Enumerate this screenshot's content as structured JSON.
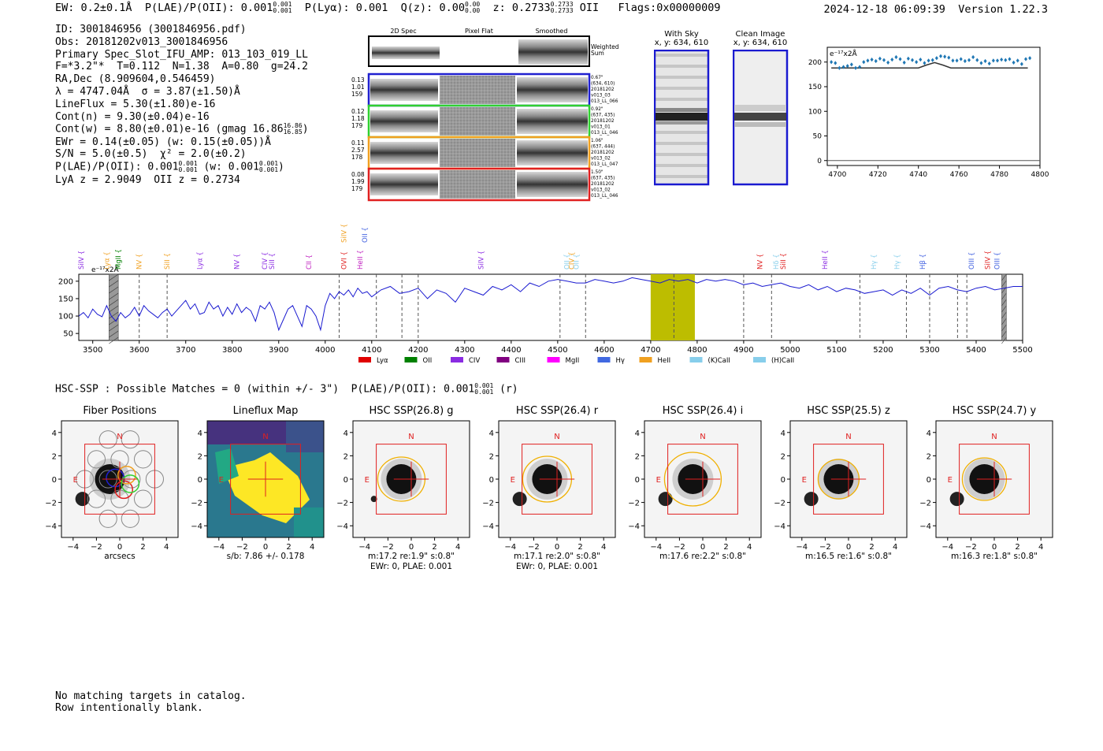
{
  "header": {
    "ew": "EW: 0.2±0.1Å",
    "plae": "P(LAE)/P(OII): 0.001",
    "plae_hi": "0.001",
    "plae_lo": "0.001",
    "plya": "P(Lyα): 0.001",
    "qz": "Q(z): 0.00",
    "qz_hi": "0.00",
    "qz_lo": "0.00",
    "z": "z: 0.2733",
    "z_hi": "0.2733",
    "z_lo": "0.2733",
    "z_type": "OII",
    "flags": "Flags:0x00000009",
    "datetime": "2024-12-18 06:09:39",
    "version": "Version 1.22.3"
  },
  "info": {
    "id": "ID: 3001846956 (3001846956.pdf)",
    "obs": "Obs: 20181202v013_3001846956",
    "primary": "Primary Spec_Slot_IFU_AMP: 013_103_019_LL",
    "params": "F=*3.2\"*  T=0.112  N=1.38  A=0.80  g=24.2",
    "radec": "RA,Dec (8.909604,0.546459)",
    "lambda": "λ = 4747.04Å  σ = 3.87(±1.50)Å",
    "lineflux": "LineFlux = 5.30(±1.80)e-16",
    "contn": "Cont(n) = 9.30(±0.04)e-16",
    "contw": "Cont(w) = 8.80(±0.01)e-16 (gmag 16.86",
    "gmag_hi": "16.86",
    "gmag_lo": "16.85",
    "ewr": "EWr = 0.14(±0.05) (w: 0.15(±0.05))Å",
    "sn": "S/N = 5.0(±0.5)  χ² = 2.0(±0.2)",
    "plae": "P(LAE)/P(OII): 0.001",
    "plae_w": "(w: 0.001",
    "plae_frac_hi": "0.001",
    "plae_frac_lo": "0.001",
    "lyaz": "LyA z = 2.9049  OII z = 0.2734"
  },
  "cutouts": {
    "headers": [
      "2D Spec",
      "Pixel Flat",
      "Smoothed"
    ],
    "weighted": "Weighted\nSum",
    "rows": [
      {
        "left": [
          "0.13",
          "1.01",
          "159"
        ],
        "right": [
          "0.67\"",
          "(634, 610)",
          "20181202",
          "v013_03",
          "013_LL_066"
        ],
        "color": "#2020d0"
      },
      {
        "left": [
          "0.12",
          "1.18",
          "179"
        ],
        "right": [
          "0.92\"",
          "(637, 435)",
          "20181202",
          "v013_01",
          "013_LL_046"
        ],
        "color": "#30d030"
      },
      {
        "left": [
          "0.11",
          "2.57",
          "178"
        ],
        "right": [
          "1.06\"",
          "(637, 444)",
          "20181202",
          "v013_02",
          "013_LL_047"
        ],
        "color": "#f0a020"
      },
      {
        "left": [
          "0.08",
          "1.99",
          "179"
        ],
        "right": [
          "1.50\"",
          "(637, 435)",
          "20181202",
          "v013_02",
          "013_LL_046"
        ],
        "color": "#e02020"
      }
    ],
    "with_sky": [
      "With Sky",
      "x, y: 634, 610"
    ],
    "clean": [
      "Clean Image",
      "x, y: 634, 610"
    ]
  },
  "hsc": {
    "title": "HSC-SSP : Possible Matches = 0 (within +/- 3\")  P(LAE)/P(OII): 0.001",
    "title_hi": "0.001",
    "title_lo": "0.001",
    "title_band": "(r)"
  },
  "footer": {
    "line1": "No matching targets in catalog.",
    "line2": "Row intentionally blank."
  },
  "chart_data": [
    {
      "type": "scatter",
      "name": "line-zoom",
      "title": "",
      "ylabel_note": "e⁻¹⁷x2Å",
      "x_ticks": [
        4700,
        4720,
        4740,
        4760,
        4780,
        4800
      ],
      "y_ticks": [
        0,
        50,
        100,
        150,
        200
      ],
      "xlim": [
        4695,
        4800
      ],
      "ylim": [
        -10,
        230
      ],
      "points_x": [
        4697,
        4699,
        4701,
        4703,
        4705,
        4707,
        4709,
        4711,
        4713,
        4715,
        4717,
        4719,
        4721,
        4723,
        4725,
        4727,
        4729,
        4731,
        4733,
        4735,
        4737,
        4739,
        4741,
        4743,
        4745,
        4747,
        4749,
        4751,
        4753,
        4755,
        4757,
        4759,
        4761,
        4763,
        4765,
        4767,
        4769,
        4771,
        4773,
        4775,
        4777,
        4779,
        4781,
        4783,
        4785,
        4787,
        4789,
        4791,
        4793,
        4795
      ],
      "points_y": [
        200,
        198,
        188,
        190,
        192,
        195,
        188,
        190,
        200,
        203,
        205,
        202,
        207,
        204,
        199,
        205,
        210,
        206,
        199,
        207,
        204,
        200,
        205,
        198,
        203,
        204,
        208,
        212,
        211,
        209,
        203,
        203,
        206,
        202,
        204,
        210,
        204,
        198,
        202,
        197,
        203,
        203,
        205,
        204,
        206,
        199,
        203,
        196,
        206,
        208
      ],
      "model_x": [
        4697,
        4740,
        4744,
        4748,
        4752,
        4756,
        4794
      ],
      "model_y": [
        188,
        188,
        194,
        199,
        194,
        188,
        188
      ]
    },
    {
      "type": "line",
      "name": "full-spectrum",
      "x_ticks": [
        3500,
        3600,
        3700,
        3800,
        3900,
        4000,
        4100,
        4200,
        4300,
        4400,
        4500,
        4600,
        4700,
        4800,
        4900,
        5000,
        5100,
        5200,
        5300,
        5400,
        5500
      ],
      "y_ticks": [
        50,
        100,
        150,
        200
      ],
      "xlim": [
        3470,
        5500
      ],
      "ylim": [
        30,
        220
      ],
      "ylabel_note": "e⁻¹⁷x2Å",
      "x": [
        3470,
        3480,
        3490,
        3500,
        3510,
        3520,
        3530,
        3540,
        3550,
        3560,
        3570,
        3580,
        3590,
        3600,
        3610,
        3620,
        3630,
        3640,
        3650,
        3660,
        3670,
        3680,
        3690,
        3700,
        3710,
        3720,
        3730,
        3740,
        3750,
        3760,
        3770,
        3780,
        3790,
        3800,
        3810,
        3820,
        3830,
        3840,
        3850,
        3860,
        3870,
        3880,
        3890,
        3900,
        3910,
        3920,
        3930,
        3940,
        3950,
        3960,
        3970,
        3980,
        3990,
        4000,
        4010,
        4020,
        4030,
        4040,
        4050,
        4060,
        4070,
        4080,
        4090,
        4100,
        4120,
        4140,
        4160,
        4180,
        4200,
        4220,
        4240,
        4260,
        4280,
        4300,
        4320,
        4340,
        4360,
        4380,
        4400,
        4420,
        4440,
        4460,
        4480,
        4500,
        4520,
        4540,
        4560,
        4580,
        4600,
        4620,
        4640,
        4660,
        4680,
        4700,
        4720,
        4740,
        4760,
        4780,
        4800,
        4820,
        4840,
        4860,
        4880,
        4900,
        4920,
        4940,
        4960,
        4980,
        5000,
        5020,
        5040,
        5060,
        5080,
        5100,
        5120,
        5140,
        5160,
        5180,
        5200,
        5220,
        5240,
        5260,
        5280,
        5300,
        5320,
        5340,
        5360,
        5380,
        5400,
        5420,
        5440,
        5460,
        5480,
        5500
      ],
      "y": [
        100,
        110,
        95,
        120,
        105,
        98,
        130,
        100,
        85,
        110,
        95,
        105,
        125,
        100,
        130,
        115,
        105,
        95,
        110,
        120,
        100,
        115,
        130,
        145,
        120,
        135,
        105,
        110,
        140,
        120,
        130,
        100,
        125,
        105,
        135,
        110,
        125,
        115,
        85,
        130,
        120,
        140,
        110,
        60,
        90,
        120,
        130,
        100,
        70,
        130,
        120,
        100,
        60,
        130,
        165,
        150,
        170,
        160,
        175,
        155,
        180,
        165,
        170,
        155,
        175,
        185,
        165,
        170,
        180,
        150,
        175,
        165,
        140,
        180,
        170,
        160,
        185,
        175,
        190,
        170,
        195,
        185,
        200,
        205,
        200,
        195,
        195,
        205,
        200,
        195,
        200,
        210,
        205,
        200,
        195,
        205,
        200,
        205,
        195,
        205,
        200,
        205,
        200,
        190,
        195,
        185,
        190,
        195,
        185,
        180,
        190,
        175,
        185,
        170,
        180,
        175,
        165,
        170,
        175,
        160,
        175,
        165,
        180,
        160,
        180,
        185,
        175,
        170,
        180,
        185,
        175,
        180,
        185,
        185
      ],
      "highlight_band": [
        4700,
        4795
      ],
      "dashed_lines": [
        3600,
        3660,
        4030,
        4110,
        4165,
        4200,
        4505,
        4560,
        4750,
        4900,
        4960,
        5150,
        5250,
        5300,
        5360,
        5380
      ],
      "hatch_bands": [
        [
          3535,
          3555
        ],
        [
          5455,
          5465
        ]
      ],
      "line_labels": [
        {
          "x": 3475,
          "label": "SiIV",
          "color": "#8a2be2"
        },
        {
          "x": 3530,
          "label": "Lyα",
          "color": "#f0a020"
        },
        {
          "x": 3555,
          "label": "MgII",
          "color": "#008000"
        },
        {
          "x": 3600,
          "label": "NV",
          "color": "#f0a020"
        },
        {
          "x": 3660,
          "label": "SiII",
          "color": "#f0a020"
        },
        {
          "x": 3730,
          "label": "Lyα",
          "color": "#8a2be2"
        },
        {
          "x": 3810,
          "label": "NV",
          "color": "#8a2be2"
        },
        {
          "x": 3870,
          "label": "CIV",
          "color": "#8a2be2"
        },
        {
          "x": 3885,
          "label": "SiII",
          "color": "#8a2be2"
        },
        {
          "x": 3965,
          "label": "CII",
          "color": "#c020c0"
        },
        {
          "x": 4040,
          "label": "OVI",
          "color": "#e02020"
        },
        {
          "x": 4075,
          "label": "HeII",
          "color": "#c020c0"
        },
        {
          "x": 4335,
          "label": "SiIV",
          "color": "#8a2be2"
        },
        {
          "x": 4520,
          "label": "OII",
          "color": "#87ceeb"
        },
        {
          "x": 4530,
          "label": "CIV",
          "color": "#f0a020"
        },
        {
          "x": 4540,
          "label": "OII",
          "color": "#87ceeb"
        },
        {
          "x": 4935,
          "label": "NV",
          "color": "#e02020"
        },
        {
          "x": 4970,
          "label": "Hδ",
          "color": "#87ceeb"
        },
        {
          "x": 4985,
          "label": "SiII",
          "color": "#e02020"
        },
        {
          "x": 5075,
          "label": "HeII",
          "color": "#8a2be2"
        },
        {
          "x": 5180,
          "label": "Hγ",
          "color": "#87ceeb"
        },
        {
          "x": 5230,
          "label": "Hγ",
          "color": "#87ceeb"
        },
        {
          "x": 5285,
          "label": "Hβ",
          "color": "#4060e0"
        },
        {
          "x": 5390,
          "label": "OIII",
          "color": "#4060e0"
        },
        {
          "x": 5425,
          "label": "SiIV",
          "color": "#e02020"
        },
        {
          "x": 5445,
          "label": "OIII",
          "color": "#4060e0"
        }
      ],
      "top_labels": [
        {
          "x": 4040,
          "label": "SiIV",
          "color": "#f0a020"
        },
        {
          "x": 4085,
          "label": "OII",
          "color": "#4060e0"
        }
      ],
      "legend": [
        {
          "label": "Lyα",
          "color": "#e00000"
        },
        {
          "label": "OII",
          "color": "#008000"
        },
        {
          "label": "CIV",
          "color": "#8a2be2"
        },
        {
          "label": "CIII",
          "color": "#800080"
        },
        {
          "label": "MgII",
          "color": "#ff00ff"
        },
        {
          "label": "Hγ",
          "color": "#4169e1"
        },
        {
          "label": "HeII",
          "color": "#f0a020"
        },
        {
          "label": "(K)CaII",
          "color": "#87ceeb"
        },
        {
          "label": "(H)CaII",
          "color": "#87ceeb"
        }
      ]
    },
    {
      "type": "table",
      "name": "imaging-panels",
      "panels": [
        {
          "title": "Fiber Positions",
          "xlabel": "arcsecs",
          "sub": "",
          "sub2": "",
          "kind": "fibers"
        },
        {
          "title": "Lineflux Map",
          "xlabel": "s/b: 7.86 +/- 0.178",
          "sub": "",
          "sub2": "",
          "kind": "flux"
        },
        {
          "title": "HSC SSP(26.8) g",
          "xlabel": "m:17.2  re:1.9\"  s:0.8\"",
          "sub": "EWr: 0, PLAE: 0.001",
          "sub2": "",
          "kind": "hsc",
          "ell_rx": 30,
          "ell_ry": 28
        },
        {
          "title": "HSC SSP(26.4) r",
          "xlabel": "m:17.1  re:2.0\"  s:0.8\"",
          "sub": "EWr: 0, PLAE: 0.001",
          "sub2": "",
          "kind": "hsc",
          "ell_rx": 31,
          "ell_ry": 29
        },
        {
          "title": "HSC SSP(26.4) i",
          "xlabel": "m:17.6  re:2.2\"  s:0.8\"",
          "sub": "",
          "sub2": "",
          "kind": "hsc",
          "ell_rx": 36,
          "ell_ry": 34
        },
        {
          "title": "HSC SSP(25.5) z",
          "xlabel": "m:16.5  re:1.6\"  s:0.8\"",
          "sub": "",
          "sub2": "",
          "kind": "hsc",
          "ell_rx": 26,
          "ell_ry": 25
        },
        {
          "title": "HSC SSP(24.7) y",
          "xlabel": "m:16.3  re:1.8\"  s:0.8\"",
          "sub": "",
          "sub2": "",
          "kind": "hsc",
          "ell_rx": 28,
          "ell_ry": 27
        }
      ],
      "axis_ticks": [
        -4,
        -2,
        0,
        2,
        4
      ],
      "compass": [
        "N",
        "E"
      ]
    }
  ]
}
